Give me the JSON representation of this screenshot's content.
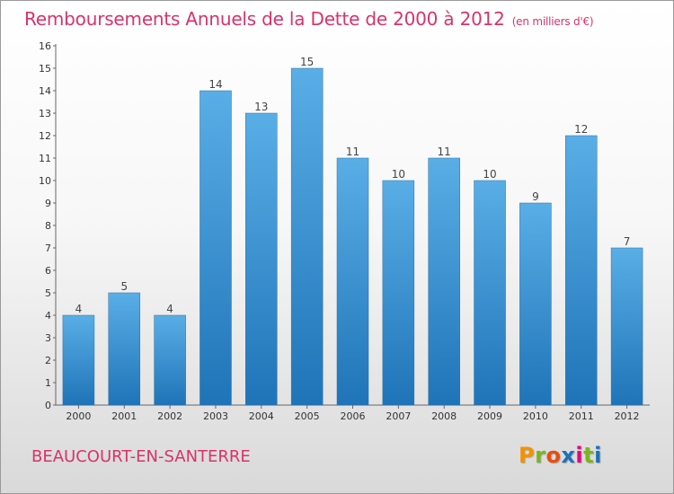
{
  "title": "Remboursements Annuels de la Dette de 2000 à 2012",
  "subtitle": "(en milliers d'€)",
  "commune": "BEAUCOURT-EN-SANTERRE",
  "logo": {
    "text": "Proxiti",
    "colors": [
      "#f39200",
      "#7ab51d",
      "#e84e0f",
      "#1d71b8",
      "#e6007e",
      "#7ab51d",
      "#1d71b8"
    ]
  },
  "colors": {
    "title": "#d8336b",
    "bar_top": "#5aaee6",
    "bar_bottom": "#1f74b8"
  },
  "chart_data": {
    "type": "bar",
    "title": "Remboursements Annuels de la Dette de 2000 à 2012",
    "subtitle": "(en milliers d'€)",
    "categories": [
      "2000",
      "2001",
      "2002",
      "2003",
      "2004",
      "2005",
      "2006",
      "2007",
      "2008",
      "2009",
      "2010",
      "2011",
      "2012"
    ],
    "values": [
      4,
      5,
      4,
      14,
      13,
      15,
      11,
      10,
      11,
      10,
      9,
      12,
      7
    ],
    "ylim": [
      0,
      16
    ],
    "yticks": [
      0,
      1,
      2,
      3,
      4,
      5,
      6,
      7,
      8,
      9,
      10,
      11,
      12,
      13,
      14,
      15,
      16
    ],
    "grid": false,
    "legend": "none"
  }
}
